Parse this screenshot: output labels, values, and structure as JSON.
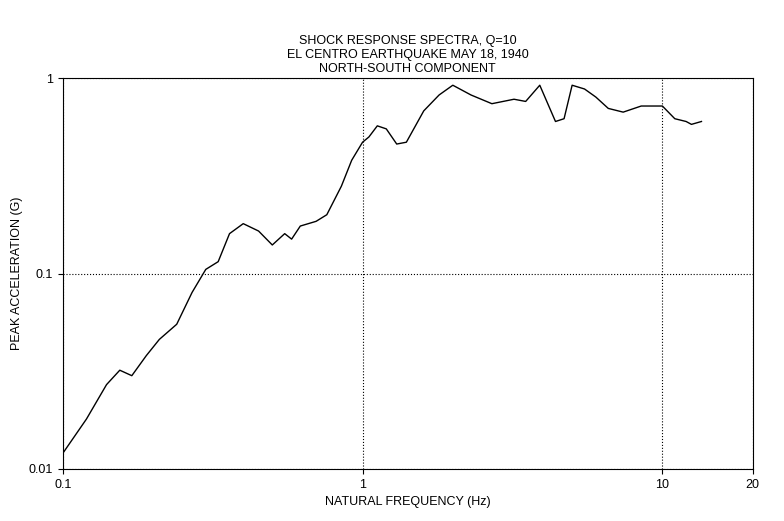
{
  "chart_data": {
    "type": "line",
    "title": "SHOCK RESPONSE SPECTRA, Q=10\nEL CENTRO EARTHQUAKE MAY 18, 1940\nNORTH-SOUTH COMPONENT",
    "x_label": "NATURAL FREQUENCY (Hz)",
    "y_label": "PEAK ACCELERATION (G)",
    "x": [
      0.1,
      0.12,
      0.14,
      0.155,
      0.17,
      0.19,
      0.21,
      0.24,
      0.27,
      0.3,
      0.33,
      0.36,
      0.4,
      0.45,
      0.5,
      0.55,
      0.58,
      0.62,
      0.7,
      0.76,
      0.85,
      0.92,
      1.0,
      1.05,
      1.12,
      1.2,
      1.3,
      1.4,
      1.6,
      1.8,
      2.0,
      2.3,
      2.7,
      3.2,
      3.5,
      3.9,
      4.4,
      4.7,
      5.0,
      5.5,
      6.0,
      6.6,
      7.4,
      8.5,
      10,
      11,
      12,
      12.5,
      13.5
    ],
    "values": [
      0.012,
      0.018,
      0.027,
      0.032,
      0.03,
      0.038,
      0.046,
      0.055,
      0.08,
      0.105,
      0.115,
      0.16,
      0.18,
      0.165,
      0.14,
      0.16,
      0.15,
      0.175,
      0.185,
      0.2,
      0.28,
      0.38,
      0.47,
      0.5,
      0.57,
      0.55,
      0.46,
      0.47,
      0.68,
      0.82,
      0.92,
      0.82,
      0.74,
      0.78,
      0.76,
      0.92,
      0.6,
      0.62,
      0.92,
      0.88,
      0.8,
      0.7,
      0.67,
      0.72,
      0.72,
      0.62,
      0.6,
      0.58,
      0.6
    ],
    "color": "#000000",
    "log": true,
    "grid": true,
    "xlim": [
      0.1,
      20
    ],
    "xticks": [
      0.1,
      1,
      10,
      20
    ],
    "ylim": [
      0.01,
      1
    ],
    "yticks": [
      0.01,
      0.1,
      1
    ]
  }
}
